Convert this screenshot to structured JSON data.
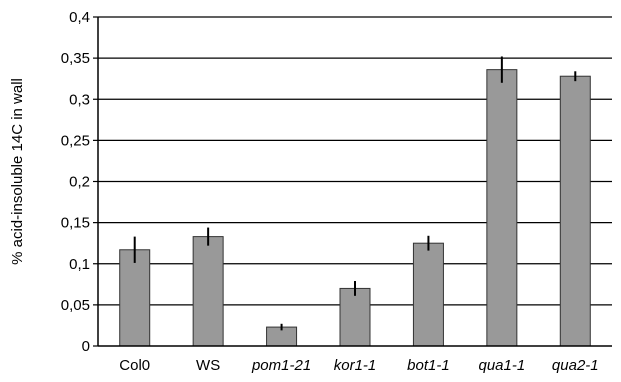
{
  "chart_data": {
    "type": "bar",
    "title": "",
    "xlabel": "",
    "ylabel": "% acid-insoluble 14C in wall",
    "ylim": [
      0,
      0.4
    ],
    "yticks": [
      "0",
      "0,05",
      "0,1",
      "0,15",
      "0,2",
      "0,25",
      "0,3",
      "0,35",
      "0,4"
    ],
    "grid": true,
    "categories": [
      "Col0",
      "WS",
      "pom1-21",
      "kor1-1",
      "bot1-1",
      "qua1-1",
      "qua2-1"
    ],
    "italic_categories": [
      false,
      false,
      true,
      true,
      true,
      true,
      true
    ],
    "values": [
      0.117,
      0.133,
      0.023,
      0.07,
      0.125,
      0.336,
      0.328
    ],
    "errors": [
      0.016,
      0.011,
      0.004,
      0.009,
      0.009,
      0.016,
      0.006
    ],
    "bar_color": "#999999",
    "error_color": "#000000"
  }
}
